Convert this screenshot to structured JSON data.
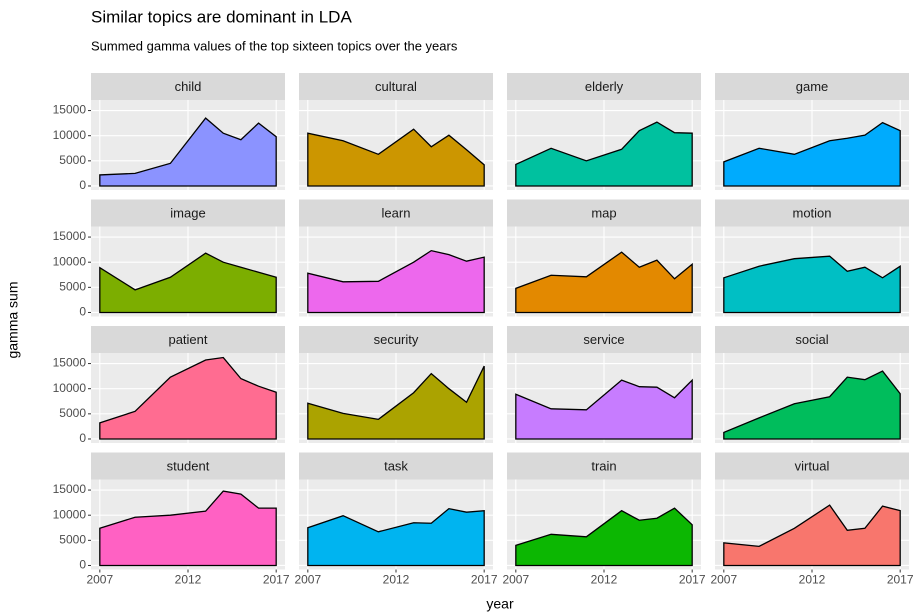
{
  "chart_data": {
    "type": "area",
    "title": "Similar topics are dominant in LDA",
    "subtitle": "Summed gamma values of the top sixteen topics over the years",
    "xlabel": "year",
    "ylabel": "gamma sum",
    "x": [
      2007,
      2009,
      2011,
      2013,
      2014,
      2015,
      2016,
      2017
    ],
    "xlim": [
      2006.5,
      2017.5
    ],
    "xticks": [
      2007,
      2012,
      2017
    ],
    "ylim": [
      -800,
      17100
    ],
    "yticks": [
      0,
      5000,
      10000,
      15000
    ],
    "grid": true,
    "columns": 4,
    "series": [
      {
        "name": "child",
        "color": "#8B93FF",
        "values": [
          2200,
          2500,
          4500,
          13500,
          10500,
          9200,
          12500,
          9800
        ]
      },
      {
        "name": "cultural",
        "color": "#CC9600",
        "values": [
          10500,
          9000,
          6300,
          11300,
          7800,
          10100,
          7200,
          4200
        ]
      },
      {
        "name": "elderly",
        "color": "#00C19F",
        "values": [
          4300,
          7500,
          5000,
          7300,
          11000,
          12700,
          10600,
          10500
        ]
      },
      {
        "name": "game",
        "color": "#00ABFD",
        "values": [
          4800,
          7500,
          6300,
          9000,
          9500,
          10100,
          12600,
          11000
        ]
      },
      {
        "name": "image",
        "color": "#7CAE00",
        "values": [
          8900,
          4500,
          7000,
          11800,
          10000,
          9000,
          8000,
          7000
        ]
      },
      {
        "name": "learn",
        "color": "#ED68ED",
        "values": [
          7800,
          6100,
          6200,
          10000,
          12300,
          11500,
          10200,
          11000
        ]
      },
      {
        "name": "map",
        "color": "#E38900",
        "values": [
          4800,
          7400,
          7100,
          12000,
          9000,
          10400,
          6700,
          9600
        ]
      },
      {
        "name": "motion",
        "color": "#00BFC4",
        "values": [
          6900,
          9200,
          10700,
          11200,
          8200,
          9000,
          6900,
          9200
        ]
      },
      {
        "name": "patient",
        "color": "#FF6C91",
        "values": [
          3200,
          5500,
          12300,
          15700,
          16200,
          12000,
          10500,
          9300
        ]
      },
      {
        "name": "security",
        "color": "#ABA300",
        "values": [
          7100,
          5100,
          3900,
          9200,
          13000,
          10000,
          7300,
          14500
        ]
      },
      {
        "name": "service",
        "color": "#C77CFF",
        "values": [
          8900,
          6000,
          5800,
          11700,
          10400,
          10300,
          8200,
          11700
        ]
      },
      {
        "name": "social",
        "color": "#00BD5C",
        "values": [
          1300,
          4200,
          7000,
          8400,
          12300,
          11800,
          13500,
          9000
        ]
      },
      {
        "name": "student",
        "color": "#FF61C3",
        "values": [
          7400,
          9600,
          10000,
          10800,
          14800,
          14200,
          11400,
          11400
        ]
      },
      {
        "name": "task",
        "color": "#00B4F0",
        "values": [
          7500,
          9900,
          6700,
          8500,
          8400,
          11300,
          10600,
          10900
        ]
      },
      {
        "name": "train",
        "color": "#0CB702",
        "values": [
          4000,
          6200,
          5700,
          10900,
          9000,
          9400,
          11400,
          8100
        ]
      },
      {
        "name": "virtual",
        "color": "#F8766D",
        "values": [
          4500,
          3800,
          7400,
          12000,
          7000,
          7400,
          11800,
          10900
        ]
      }
    ]
  }
}
